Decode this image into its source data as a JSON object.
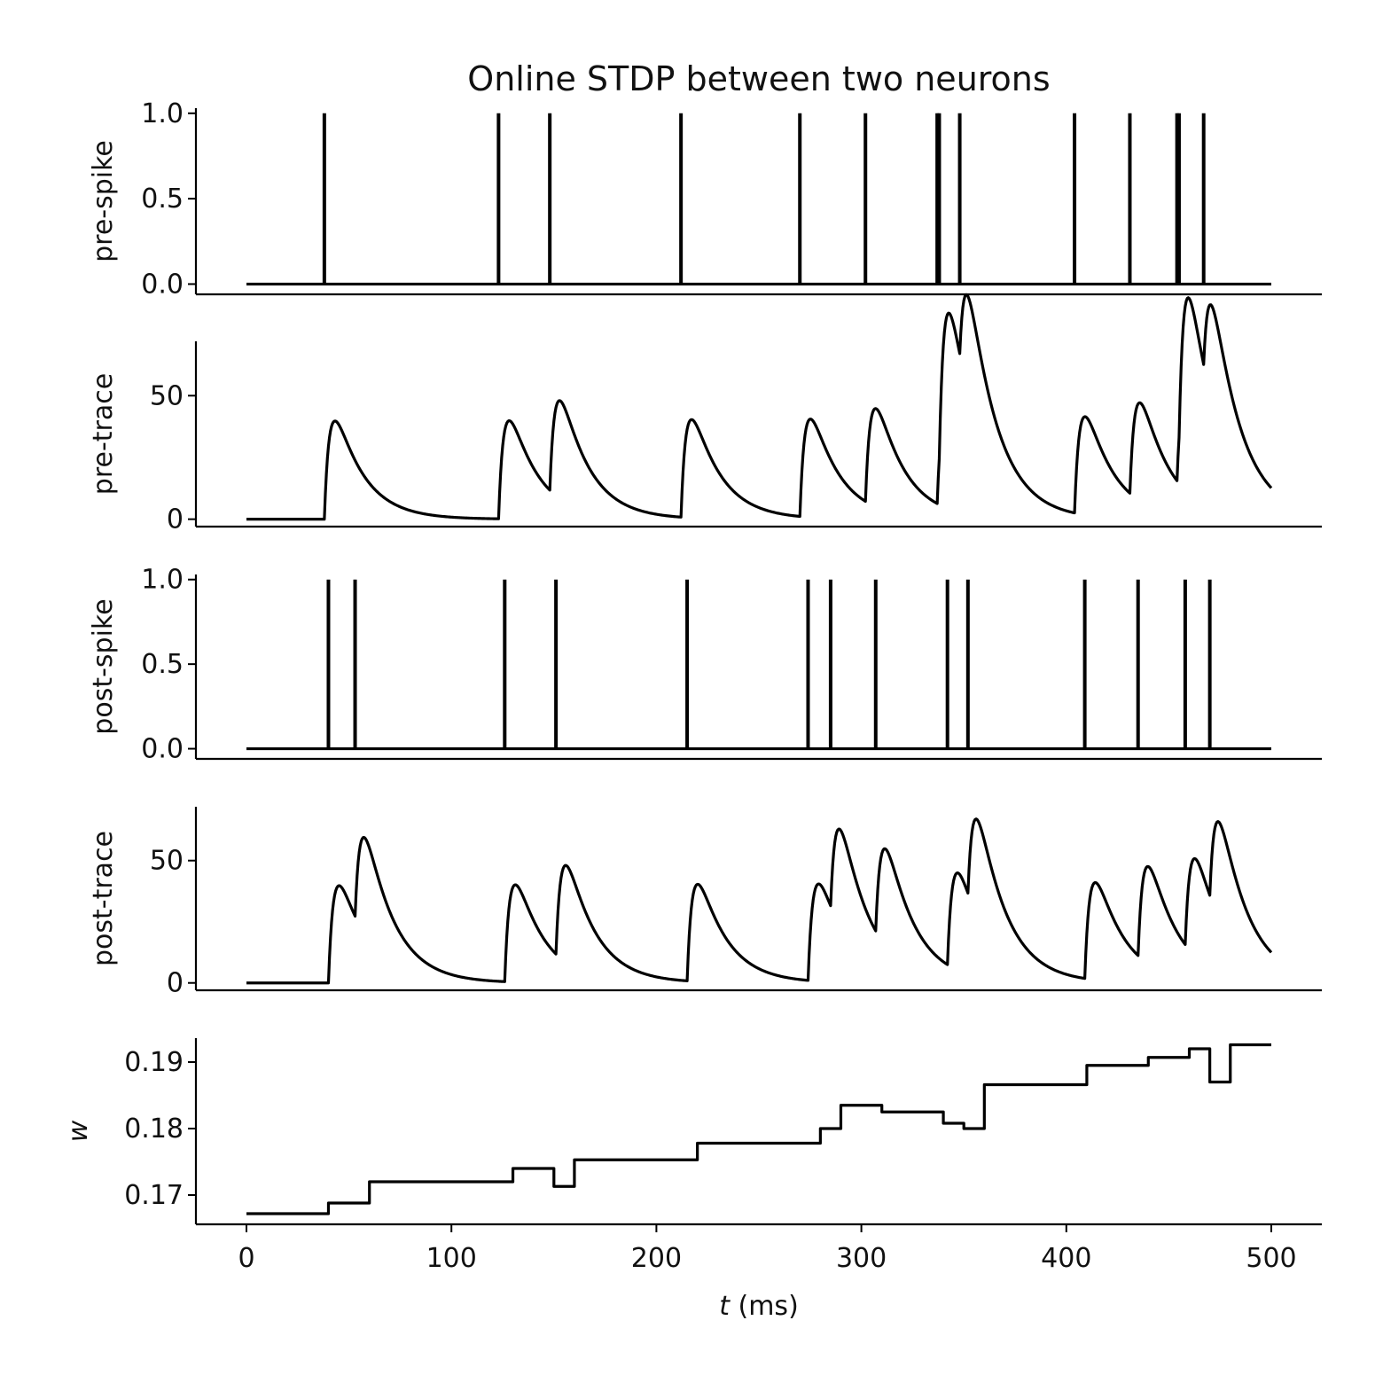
{
  "chart_data": {
    "type": "line",
    "title": "Online STDP between two neurons",
    "xlabel_italic": "t",
    "xlabel_rest": " (ms)",
    "x_ticks": [
      "0",
      "100",
      "200",
      "300",
      "400",
      "500"
    ],
    "x_range": [
      0,
      500
    ],
    "grid": false,
    "legend": "none",
    "color": "#000000",
    "panels": [
      {
        "id": "pre-spike",
        "ylabel": "pre-spike",
        "kind": "spikes",
        "ylim": [
          -0.06,
          1.03
        ],
        "y_ticks": [
          "0.0",
          "0.5",
          "1.0"
        ],
        "spike_times": [
          38,
          123,
          148,
          212,
          270,
          302,
          337,
          338,
          348,
          404,
          431,
          454,
          455,
          467
        ],
        "spike_height": 1.0
      },
      {
        "id": "pre-trace",
        "ylabel": "pre-trace",
        "kind": "trace",
        "ylim": [
          -3,
          72
        ],
        "y_ticks": [
          "0",
          "50"
        ],
        "spike_times": [
          38,
          123,
          148,
          212,
          270,
          302,
          337,
          338,
          348,
          404,
          431,
          454,
          455,
          467
        ],
        "tau_rise": 3,
        "tau_decay": 14,
        "amplitude": 38.5,
        "end_value": 19
      },
      {
        "id": "post-spike",
        "ylabel": "post-spike",
        "kind": "spikes",
        "ylim": [
          -0.06,
          1.03
        ],
        "y_ticks": [
          "0.0",
          "0.5",
          "1.0"
        ],
        "spike_times": [
          40,
          53,
          126,
          151,
          215,
          274,
          285,
          307,
          342,
          352,
          409,
          435,
          458,
          470
        ],
        "spike_height": 1.0
      },
      {
        "id": "post-trace",
        "ylabel": "post-trace",
        "kind": "trace",
        "ylim": [
          -3,
          72
        ],
        "y_ticks": [
          "0",
          "50"
        ],
        "spike_times": [
          40,
          53,
          126,
          151,
          215,
          274,
          285,
          307,
          342,
          352,
          409,
          435,
          458,
          470
        ],
        "tau_rise": 3,
        "tau_decay": 14,
        "amplitude": 38.5,
        "end_value": 22
      },
      {
        "id": "weight",
        "ylabel": "w",
        "kind": "step",
        "ylim": [
          0.1656,
          0.1936
        ],
        "y_ticks": [
          "0.17",
          "0.18",
          "0.19"
        ],
        "steps": [
          [
            0,
            0.1672
          ],
          [
            40,
            0.1688
          ],
          [
            60,
            0.172
          ],
          [
            130,
            0.174
          ],
          [
            150,
            0.1713
          ],
          [
            160,
            0.1753
          ],
          [
            220,
            0.1778
          ],
          [
            280,
            0.18
          ],
          [
            290,
            0.1835
          ],
          [
            310,
            0.1825
          ],
          [
            340,
            0.1808
          ],
          [
            350,
            0.18
          ],
          [
            360,
            0.1866
          ],
          [
            410,
            0.1895
          ],
          [
            440,
            0.1907
          ],
          [
            460,
            0.192
          ],
          [
            470,
            0.187
          ],
          [
            480,
            0.1926
          ],
          [
            500,
            0.1926
          ]
        ]
      }
    ]
  }
}
